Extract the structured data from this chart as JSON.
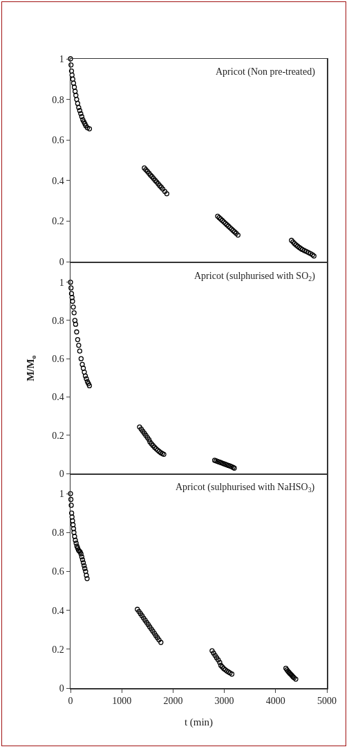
{
  "chart_data": [
    {
      "type": "scatter",
      "title": "Apricot (Non pre-treated)",
      "marker": "circle",
      "xlim": [
        0,
        5000
      ],
      "ylim": [
        0,
        1
      ],
      "yticks": [
        0,
        0.2,
        0.4,
        0.6,
        0.8,
        1
      ],
      "xticks": [
        0,
        1000,
        2000,
        3000,
        4000,
        5000
      ],
      "tick_labels": "y",
      "series": [
        {
          "color": "#000000",
          "x": [
            0,
            10,
            20,
            30,
            45,
            60,
            75,
            90,
            105,
            120,
            140,
            160,
            180,
            200,
            220,
            240,
            260,
            280,
            300,
            330,
            370,
            1440,
            1470,
            1500,
            1530,
            1560,
            1590,
            1620,
            1650,
            1680,
            1710,
            1740,
            1770,
            1800,
            1840,
            1878,
            2870,
            2900,
            2930,
            2960,
            2990,
            3020,
            3050,
            3080,
            3110,
            3140,
            3170,
            3200,
            3230,
            3266,
            4310,
            4340,
            4370,
            4400,
            4430,
            4460,
            4490,
            4520,
            4560,
            4600,
            4640,
            4680,
            4720,
            4748
          ],
          "values": [
            1,
            0.97,
            0.94,
            0.92,
            0.9,
            0.88,
            0.86,
            0.84,
            0.82,
            0.8,
            0.78,
            0.76,
            0.745,
            0.73,
            0.715,
            0.7,
            0.69,
            0.68,
            0.67,
            0.66,
            0.655,
            0.462,
            0.453,
            0.445,
            0.436,
            0.427,
            0.419,
            0.41,
            0.401,
            0.393,
            0.384,
            0.375,
            0.367,
            0.358,
            0.346,
            0.335,
            0.224,
            0.217,
            0.21,
            0.203,
            0.196,
            0.189,
            0.182,
            0.175,
            0.168,
            0.161,
            0.154,
            0.147,
            0.14,
            0.131,
            0.105,
            0.097,
            0.089,
            0.082,
            0.076,
            0.07,
            0.065,
            0.06,
            0.055,
            0.05,
            0.045,
            0.04,
            0.034,
            0.028
          ]
        }
      ]
    },
    {
      "type": "scatter",
      "title": "Apricot (sulphurised with SO$_{2}$)",
      "ylabel": "M/M$_{o}$",
      "marker": "circle",
      "xlim": [
        0,
        5000
      ],
      "ylim": [
        0,
        1.1
      ],
      "yticks": [
        0,
        0.2,
        0.4,
        0.6,
        0.8,
        1
      ],
      "xticks": [
        0,
        1000,
        2000,
        3000,
        4000,
        5000
      ],
      "tick_labels": "y",
      "series": [
        {
          "color": "#000000",
          "x": [
            0,
            10,
            20,
            30,
            40,
            55,
            70,
            86,
            100,
            120,
            140,
            160,
            180,
            207,
            230,
            250,
            270,
            290,
            310,
            330,
            350,
            369,
            1347,
            1380,
            1410,
            1440,
            1470,
            1500,
            1530,
            1550,
            1580,
            1610,
            1640,
            1670,
            1700,
            1730,
            1760,
            1790,
            1820,
            2811,
            2840,
            2870,
            2900,
            2930,
            2960,
            2990,
            3020,
            3050,
            3080,
            3110,
            3140,
            3170,
            3194
          ],
          "values": [
            1,
            0.97,
            0.94,
            0.92,
            0.9,
            0.87,
            0.84,
            0.8,
            0.78,
            0.74,
            0.7,
            0.67,
            0.64,
            0.6,
            0.57,
            0.55,
            0.53,
            0.51,
            0.495,
            0.48,
            0.47,
            0.459,
            0.243,
            0.232,
            0.221,
            0.21,
            0.199,
            0.188,
            0.177,
            0.165,
            0.155,
            0.146,
            0.137,
            0.129,
            0.122,
            0.115,
            0.109,
            0.104,
            0.1,
            0.069,
            0.066,
            0.063,
            0.06,
            0.057,
            0.054,
            0.051,
            0.048,
            0.045,
            0.042,
            0.039,
            0.036,
            0.032,
            0.028
          ]
        }
      ]
    },
    {
      "type": "scatter",
      "title": "Apricot (sulphurised with NaHSO$_{3}$)",
      "xlabel": "t (min)",
      "marker": "circle",
      "xlim": [
        0,
        5000
      ],
      "ylim": [
        0,
        1.1
      ],
      "yticks": [
        0,
        0.2,
        0.4,
        0.6,
        0.8,
        1
      ],
      "xticks": [
        0,
        1000,
        2000,
        3000,
        4000,
        5000
      ],
      "series": [
        {
          "color": "#000000",
          "x": [
            0,
            8,
            15,
            22,
            30,
            40,
            50,
            60,
            67,
            80,
            95,
            110,
            125,
            140,
            155,
            170,
            189,
            205,
            220,
            235,
            250,
            265,
            279,
            295,
            310,
            324,
            1304,
            1335,
            1365,
            1395,
            1425,
            1455,
            1485,
            1515,
            1545,
            1575,
            1605,
            1635,
            1665,
            1695,
            1725,
            1763,
            2761,
            2790,
            2820,
            2850,
            2880,
            2910,
            2932,
            2960,
            2990,
            3020,
            3050,
            3080,
            3110,
            3147,
            4200,
            4220,
            4240,
            4260,
            4280,
            4300,
            4320,
            4340,
            4360,
            4393
          ],
          "values": [
            1,
            0.97,
            0.94,
            0.9,
            0.88,
            0.86,
            0.84,
            0.82,
            0.8,
            0.78,
            0.76,
            0.745,
            0.73,
            0.72,
            0.71,
            0.705,
            0.7,
            0.69,
            0.675,
            0.66,
            0.645,
            0.63,
            0.615,
            0.6,
            0.58,
            0.563,
            0.405,
            0.394,
            0.383,
            0.372,
            0.36,
            0.349,
            0.338,
            0.327,
            0.315,
            0.304,
            0.293,
            0.282,
            0.27,
            0.259,
            0.248,
            0.235,
            0.192,
            0.18,
            0.168,
            0.156,
            0.145,
            0.132,
            0.117,
            0.109,
            0.1,
            0.094,
            0.088,
            0.083,
            0.078,
            0.072,
            0.102,
            0.094,
            0.087,
            0.081,
            0.075,
            0.07,
            0.064,
            0.058,
            0.053,
            0.046
          ]
        }
      ]
    }
  ]
}
